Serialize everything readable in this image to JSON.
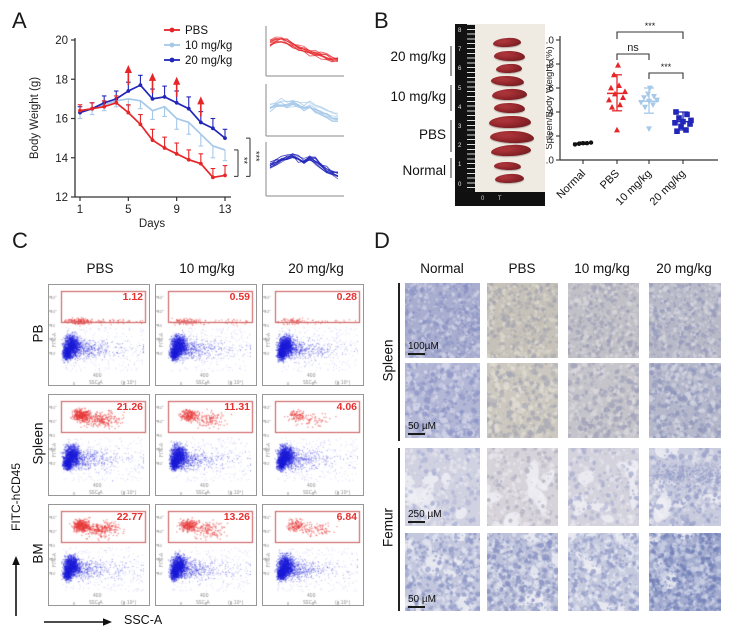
{
  "figure": {
    "background": "#ffffff",
    "panels": {
      "a": {
        "label": "A"
      },
      "b": {
        "label": "B",
        "photo": {
          "groups": [
            "20 mg/kg",
            "10 mg/kg",
            "PBS",
            "Normal"
          ],
          "group_spleen_counts": [
            3,
            3,
            3,
            2
          ],
          "ruler_numbers": [
            "8",
            "7",
            "6",
            "5",
            "4",
            "3",
            "2",
            "1",
            "0"
          ],
          "ruler_base_text": "0 T"
        }
      },
      "c": {
        "label": "C",
        "x_axis_label": "SSC-A",
        "y_axis_label": "FITC-hCD45",
        "mini_plot": {
          "x_tick": "400",
          "x_label": "SSC-A",
          "x_units": "(x 10³)",
          "y_label": "FITC-A"
        }
      },
      "d": {
        "label": "D",
        "columns": [
          "Normal",
          "PBS",
          "10 mg/kg",
          "20 mg/kg"
        ],
        "row_groups": [
          {
            "name": "Spleen",
            "rows": [
              {
                "scale": "100µM"
              },
              {
                "scale": "50 µM"
              }
            ]
          },
          {
            "name": "Femur",
            "rows": [
              {
                "scale": "250 µM"
              },
              {
                "scale": "50 µM"
              }
            ]
          }
        ]
      }
    },
    "colors": {
      "pbs_red": "#e62529",
      "light_blue": "#a6c9e9",
      "dark_blue": "#2226b8",
      "normal_black": "#111111",
      "flow_blue": "#1c1cd8",
      "flow_red": "#e84c4c",
      "gate_red": "#cf6a6a",
      "percent_red": "#e8302f"
    }
  },
  "chart_data": [
    {
      "id": "body-weight",
      "type": "line",
      "xlabel": "Days",
      "ylabel": "Body Weight (g)",
      "x": [
        1,
        2,
        3,
        4,
        5,
        6,
        7,
        8,
        9,
        10,
        11,
        12,
        13
      ],
      "xticks": [
        1,
        5,
        9,
        13
      ],
      "yticks": [
        12,
        14,
        16,
        18,
        20
      ],
      "ylim": [
        12,
        20
      ],
      "treatment_arrow_days": [
        5,
        7,
        9,
        11
      ],
      "series": [
        {
          "name": "PBS",
          "color": "#e62529",
          "values": [
            16.4,
            16.5,
            16.6,
            16.8,
            16.3,
            15.7,
            14.9,
            14.5,
            14.2,
            13.9,
            13.7,
            13.0,
            13.1
          ],
          "errors": [
            0.3,
            0.3,
            0.3,
            0.35,
            0.4,
            0.5,
            0.55,
            0.55,
            0.55,
            0.5,
            0.5,
            0.45,
            0.5
          ],
          "error_dir": "up"
        },
        {
          "name": "10 mg/kg",
          "color": "#a6c9e9",
          "values": [
            16.3,
            16.5,
            16.7,
            16.9,
            17.0,
            16.9,
            16.4,
            16.6,
            16.0,
            15.8,
            15.2,
            14.6,
            14.4
          ],
          "errors": [
            0.3,
            0.3,
            0.3,
            0.3,
            0.35,
            0.4,
            0.45,
            0.5,
            0.55,
            0.6,
            0.6,
            0.6,
            0.55
          ],
          "error_dir": "down"
        },
        {
          "name": "20 mg/kg",
          "color": "#2226b8",
          "values": [
            16.3,
            16.5,
            16.8,
            17.0,
            17.4,
            17.7,
            17.0,
            17.1,
            16.8,
            16.5,
            15.8,
            15.5,
            15.0
          ],
          "errors": [
            0.3,
            0.3,
            0.35,
            0.4,
            0.45,
            0.5,
            0.5,
            0.55,
            0.6,
            0.6,
            0.55,
            0.5,
            0.45
          ],
          "error_dir": "up"
        }
      ],
      "significance": [
        {
          "between": [
            "10 mg/kg",
            "PBS"
          ],
          "label": "**"
        },
        {
          "between": [
            "20 mg/kg",
            "PBS"
          ],
          "label": "***"
        }
      ],
      "insets": [
        {
          "color": "#e62529",
          "trend": [
            0.7,
            0.74,
            0.76,
            0.72,
            0.65,
            0.58,
            0.52,
            0.47,
            0.43,
            0.4,
            0.35,
            0.28,
            0.3
          ],
          "n_lines": 9
        },
        {
          "color": "#a6c9e9",
          "trend": [
            0.55,
            0.6,
            0.63,
            0.6,
            0.65,
            0.6,
            0.55,
            0.58,
            0.5,
            0.45,
            0.4,
            0.33,
            0.3
          ],
          "n_lines": 10
        },
        {
          "color": "#2226b8",
          "trend": [
            0.55,
            0.6,
            0.66,
            0.7,
            0.75,
            0.68,
            0.62,
            0.7,
            0.65,
            0.55,
            0.45,
            0.38,
            0.33
          ],
          "n_lines": 10
        }
      ]
    },
    {
      "id": "spleen-body-weight",
      "type": "scatter",
      "ylabel": "Spleen/Body Weight (%)",
      "ylim": [
        0,
        1
      ],
      "yticks": [
        "0.0",
        "0.2",
        "0.4",
        "0.6",
        "0.8",
        "1.0"
      ],
      "categories": [
        "Normal",
        "PBS",
        "10 mg/kg",
        "20 mg/kg"
      ],
      "groups": [
        {
          "name": "Normal",
          "marker": "circle",
          "color": "#111111",
          "mean": 0.14,
          "err_low": 0.131,
          "err_high": 0.149,
          "points": [
            0.13,
            0.135,
            0.14,
            0.14,
            0.145
          ]
        },
        {
          "name": "PBS",
          "marker": "triangle-up",
          "color": "#e62529",
          "mean": 0.555,
          "err_low": 0.41,
          "err_high": 0.71,
          "points": [
            0.25,
            0.44,
            0.46,
            0.5,
            0.52,
            0.55,
            0.57,
            0.6,
            0.62,
            0.71,
            0.79
          ]
        },
        {
          "name": "10 mg/kg",
          "marker": "triangle-down",
          "color": "#a6c9e9",
          "mean": 0.49,
          "err_low": 0.39,
          "err_high": 0.6,
          "points": [
            0.26,
            0.44,
            0.46,
            0.48,
            0.49,
            0.5,
            0.52,
            0.53,
            0.55,
            0.6
          ]
        },
        {
          "name": "20 mg/kg",
          "marker": "square",
          "color": "#2226b8",
          "mean": 0.32,
          "err_low": 0.25,
          "err_high": 0.4,
          "points": [
            0.24,
            0.25,
            0.28,
            0.3,
            0.31,
            0.32,
            0.33,
            0.35,
            0.38,
            0.4
          ]
        }
      ],
      "significance": [
        {
          "between": [
            "PBS",
            "20 mg/kg"
          ],
          "label": "***"
        },
        {
          "between": [
            "PBS",
            "10 mg/kg"
          ],
          "label": "ns"
        },
        {
          "between": [
            "10 mg/kg",
            "20 mg/kg"
          ],
          "label": "***"
        }
      ]
    },
    {
      "id": "flow-cytometry-hcd45",
      "type": "table",
      "columns": [
        "PBS",
        "10 mg/kg",
        "20 mg/kg"
      ],
      "rows": [
        "PB",
        "Spleen",
        "BM"
      ],
      "values": [
        [
          1.12,
          0.59,
          0.28
        ],
        [
          21.26,
          11.31,
          4.06
        ],
        [
          22.77,
          13.26,
          6.84
        ]
      ],
      "xlabel": "SSC-A",
      "ylabel": "FITC-hCD45"
    }
  ]
}
